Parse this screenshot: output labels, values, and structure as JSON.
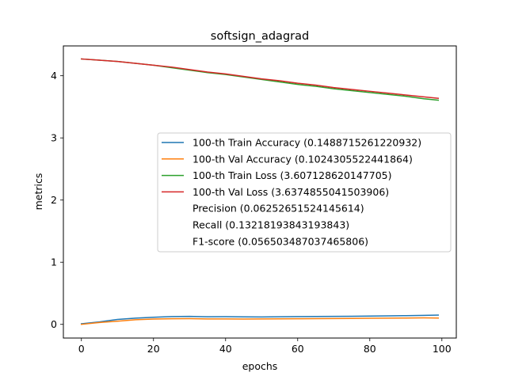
{
  "chart_data": {
    "type": "line",
    "title": "softsign_adagrad",
    "xlabel": "epochs",
    "ylabel": "metrics",
    "xlim": [
      -5,
      104
    ],
    "ylim": [
      -0.22,
      4.48
    ],
    "x_ticks": [
      0,
      20,
      40,
      60,
      80,
      100
    ],
    "y_ticks": [
      0,
      1,
      2,
      3,
      4
    ],
    "grid": false,
    "legend_position": "center-right",
    "series": [
      {
        "name": "100-th Train Accuracy (0.1488715261220932)",
        "color": "#1f77b4",
        "x": [
          0,
          5,
          10,
          15,
          20,
          25,
          30,
          35,
          40,
          45,
          50,
          55,
          60,
          65,
          70,
          75,
          80,
          85,
          90,
          95,
          99
        ],
        "y": [
          0.01,
          0.04,
          0.08,
          0.1,
          0.115,
          0.125,
          0.128,
          0.122,
          0.124,
          0.121,
          0.119,
          0.122,
          0.125,
          0.127,
          0.129,
          0.131,
          0.133,
          0.136,
          0.14,
          0.145,
          0.149
        ]
      },
      {
        "name": "100-th Val Accuracy (0.1024305522441864)",
        "color": "#ff7f0e",
        "x": [
          0,
          5,
          10,
          15,
          20,
          25,
          30,
          35,
          40,
          45,
          50,
          55,
          60,
          65,
          70,
          75,
          80,
          85,
          90,
          95,
          99
        ],
        "y": [
          0.0,
          0.03,
          0.05,
          0.075,
          0.085,
          0.09,
          0.092,
          0.088,
          0.087,
          0.086,
          0.088,
          0.089,
          0.09,
          0.092,
          0.094,
          0.096,
          0.098,
          0.1,
          0.102,
          0.104,
          0.102
        ]
      },
      {
        "name": "100-th Train Loss (3.607128620147705)",
        "color": "#2ca02c",
        "x": [
          0,
          5,
          10,
          15,
          20,
          25,
          30,
          35,
          40,
          45,
          50,
          55,
          60,
          65,
          70,
          75,
          80,
          85,
          90,
          95,
          99
        ],
        "y": [
          4.27,
          4.25,
          4.23,
          4.2,
          4.17,
          4.13,
          4.09,
          4.05,
          4.02,
          3.98,
          3.94,
          3.9,
          3.86,
          3.83,
          3.79,
          3.76,
          3.73,
          3.7,
          3.67,
          3.63,
          3.607
        ]
      },
      {
        "name": "100-th Val Loss (3.6374855041503906)",
        "color": "#d62728",
        "x": [
          0,
          5,
          10,
          15,
          20,
          25,
          30,
          35,
          40,
          45,
          50,
          55,
          60,
          65,
          70,
          75,
          80,
          85,
          90,
          95,
          99
        ],
        "y": [
          4.27,
          4.25,
          4.23,
          4.2,
          4.17,
          4.14,
          4.1,
          4.06,
          4.03,
          3.99,
          3.95,
          3.92,
          3.88,
          3.85,
          3.81,
          3.78,
          3.75,
          3.72,
          3.69,
          3.66,
          3.637
        ]
      }
    ],
    "extra_legend_entries": [
      "Precision (0.06252651524145614)",
      "Recall (0.13218193843193843)",
      "F1-score (0.056503487037465806)"
    ]
  }
}
